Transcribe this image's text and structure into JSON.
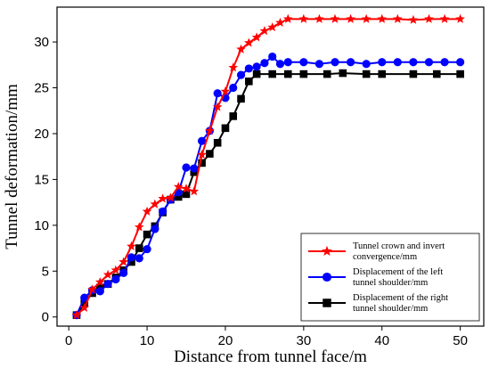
{
  "chart_data": {
    "type": "line",
    "xlabel": "Distance from tunnel face/m",
    "ylabel": "Tunnel deformation/mm",
    "xlim": [
      -1.5,
      53
    ],
    "ylim": [
      -1.0,
      33.8
    ],
    "xticks": [
      0,
      10,
      20,
      30,
      40,
      50
    ],
    "yticks": [
      0,
      5,
      10,
      15,
      20,
      25,
      30
    ],
    "grid": false,
    "legend_position": "bottom-right",
    "series": [
      {
        "name_lines": [
          "Tunnel crown and invert",
          "convergence/mm"
        ],
        "color": "#ff0000",
        "marker": "star",
        "x": [
          1,
          2,
          3,
          4,
          5,
          6,
          7,
          8,
          9,
          10,
          11,
          12,
          13,
          14,
          15,
          16,
          17,
          18,
          19,
          20,
          21,
          22,
          23,
          24,
          25,
          26,
          27,
          28,
          30,
          32,
          34,
          36,
          38,
          40,
          42,
          44,
          46,
          48,
          50
        ],
        "y": [
          0.2,
          1.0,
          3.0,
          3.8,
          4.6,
          5.1,
          6.0,
          7.7,
          9.8,
          11.5,
          12.3,
          12.9,
          13.0,
          14.2,
          14.0,
          13.7,
          17.7,
          20.3,
          22.9,
          24.6,
          27.2,
          29.2,
          29.9,
          30.5,
          31.2,
          31.6,
          32.1,
          32.5,
          32.5,
          32.5,
          32.5,
          32.5,
          32.5,
          32.5,
          32.5,
          32.4,
          32.5,
          32.5,
          32.5
        ]
      },
      {
        "name_lines": [
          "Displacement of the left",
          "tunnel shoulder/mm"
        ],
        "color": "#0000ff",
        "marker": "circle",
        "x": [
          1,
          2,
          3,
          4,
          5,
          6,
          7,
          8,
          9,
          10,
          11,
          12,
          13,
          14,
          15,
          16,
          17,
          18,
          19,
          20,
          21,
          22,
          23,
          24,
          25,
          26,
          27,
          28,
          30,
          32,
          34,
          36,
          38,
          40,
          42,
          44,
          46,
          48,
          50
        ],
        "y": [
          0.2,
          2.1,
          2.9,
          2.8,
          3.6,
          4.1,
          4.8,
          6.5,
          6.4,
          7.4,
          9.6,
          11.5,
          12.8,
          13.6,
          16.3,
          16.2,
          19.2,
          20.3,
          24.4,
          23.9,
          25.0,
          26.4,
          27.1,
          27.3,
          27.7,
          28.4,
          27.6,
          27.8,
          27.8,
          27.6,
          27.8,
          27.8,
          27.6,
          27.8,
          27.8,
          27.8,
          27.8,
          27.8,
          27.8
        ]
      },
      {
        "name_lines": [
          "Displacement of the right",
          "tunnel shoulder/mm"
        ],
        "color": "#000000",
        "marker": "square",
        "x": [
          1,
          2,
          3,
          4,
          5,
          6,
          7,
          8,
          9,
          10,
          11,
          12,
          13,
          14,
          15,
          16,
          17,
          18,
          19,
          20,
          21,
          22,
          23,
          24,
          26,
          28,
          30,
          33,
          35,
          38,
          40,
          44,
          47,
          50
        ],
        "y": [
          0.2,
          1.5,
          2.6,
          3.2,
          3.6,
          4.3,
          5.1,
          6.0,
          7.5,
          9.0,
          9.9,
          11.4,
          12.8,
          13.1,
          13.4,
          15.8,
          16.8,
          17.8,
          19.0,
          20.6,
          21.9,
          23.8,
          25.7,
          26.5,
          26.5,
          26.5,
          26.5,
          26.5,
          26.6,
          26.5,
          26.5,
          26.5,
          26.5,
          26.5
        ]
      }
    ]
  }
}
